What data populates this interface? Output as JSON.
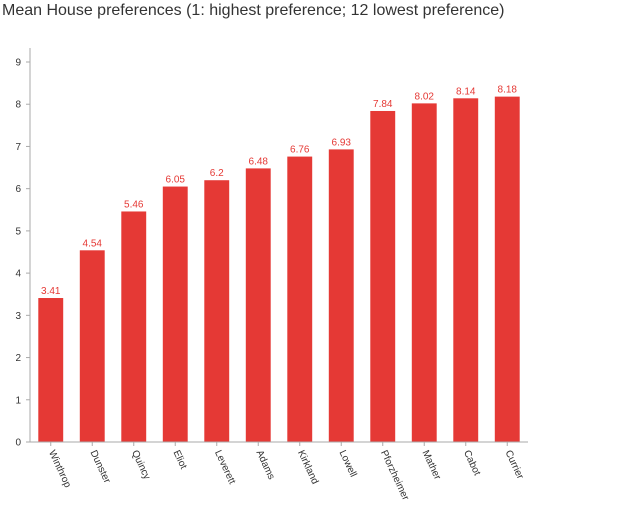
{
  "chart_data": {
    "type": "bar",
    "title": "Mean House preferences (1: highest preference; 12 lowest preference)",
    "xlabel": "",
    "ylabel": "",
    "categories": [
      "Winthrop",
      "Dunster",
      "Quincy",
      "Eliot",
      "Leverett",
      "Adams",
      "Kirkland",
      "Lowell",
      "Pforzheimer",
      "Mather",
      "Cabot",
      "Currier"
    ],
    "values": [
      3.41,
      4.54,
      5.46,
      6.05,
      6.2,
      6.48,
      6.76,
      6.93,
      7.84,
      8.02,
      8.14,
      8.18
    ],
    "value_labels": [
      "3.41",
      "4.54",
      "5.46",
      "6.05",
      "6.2",
      "6.48",
      "6.76",
      "6.93",
      "7.84",
      "8.02",
      "8.14",
      "8.18"
    ],
    "ylim": [
      0,
      9
    ],
    "yticks": [
      "0",
      "1",
      "2",
      "3",
      "4",
      "5",
      "6",
      "7",
      "8",
      "9"
    ],
    "grid": false,
    "legend": "none",
    "colors": {
      "bar": "#e53935",
      "value_label": "#e53935",
      "axis": "#aaaaaa",
      "text": "#333333"
    }
  }
}
